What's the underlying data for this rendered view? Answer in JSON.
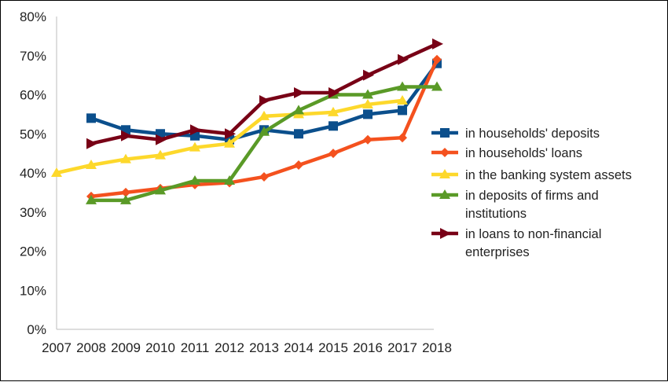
{
  "chart_data": {
    "type": "line",
    "title": "",
    "xlabel": "",
    "ylabel": "",
    "x": [
      "2007",
      "2008",
      "2009",
      "2010",
      "2011",
      "2012",
      "2013",
      "2014",
      "2015",
      "2016",
      "2017",
      "2018"
    ],
    "y_ticks": [
      "0%",
      "10%",
      "20%",
      "30%",
      "40%",
      "50%",
      "60%",
      "70%",
      "80%"
    ],
    "ylim": [
      0,
      80
    ],
    "y_unit": "%",
    "grid": false,
    "legend_position": "right",
    "series": [
      {
        "name": "in households' deposits",
        "color": "#0b4f8c",
        "marker": "square",
        "values": [
          null,
          54,
          51,
          50,
          49.5,
          48.5,
          51,
          50,
          52,
          55,
          56,
          68
        ]
      },
      {
        "name": "in households' loans",
        "color": "#f4511e",
        "marker": "diamond",
        "values": [
          null,
          34,
          35,
          36,
          37,
          37.5,
          39,
          42,
          45,
          48.5,
          49,
          69
        ]
      },
      {
        "name": "in the banking system assets",
        "color": "#fdd82b",
        "marker": "triangle",
        "values": [
          40,
          42,
          43.5,
          44.5,
          46.5,
          47.5,
          54.5,
          55,
          55.5,
          57.5,
          58.5,
          null
        ]
      },
      {
        "name": "in deposits of firms and institutions",
        "name_lines": [
          "in deposits of firms and",
          "institutions"
        ],
        "color": "#5a9a27",
        "marker": "triangle",
        "values": [
          null,
          33,
          33,
          35.5,
          38,
          38,
          50.5,
          56,
          60,
          60,
          62,
          62
        ]
      },
      {
        "name": "in loans to non-financial enterprises",
        "name_lines": [
          "in loans to non-financial",
          "enterprises"
        ],
        "color": "#780016",
        "marker": "arrow",
        "values": [
          null,
          47.5,
          49.5,
          48.5,
          51,
          50,
          58.5,
          60.5,
          60.5,
          65,
          69,
          73
        ]
      }
    ]
  }
}
